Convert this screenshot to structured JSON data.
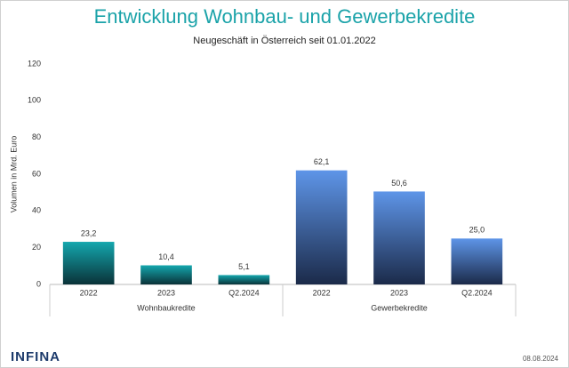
{
  "chart_data": {
    "type": "bar",
    "title": "Entwicklung Wohnbau- und Gewerbekredite",
    "subtitle": "Neugeschäft in Österreich seit 01.01.2022",
    "y_label": "Volumen in Mrd. Euro",
    "ylim": [
      0,
      120
    ],
    "yticks": [
      0,
      20,
      40,
      60,
      80,
      100,
      120
    ],
    "grid": false,
    "groups": [
      {
        "name": "Wohnbaukredite",
        "categories": [
          "2022",
          "2023",
          "Q2.2024"
        ],
        "values": [
          23.2,
          10.4,
          5.1
        ],
        "value_labels": [
          "23,2",
          "10,4",
          "5,1"
        ],
        "color": [
          "#14a7ae",
          "#0a3238"
        ]
      },
      {
        "name": "Gewerbekredite",
        "categories": [
          "2022",
          "2023",
          "Q2.2024"
        ],
        "values": [
          62.1,
          50.6,
          25.0
        ],
        "value_labels": [
          "62,1",
          "50,6",
          "25,0"
        ],
        "color": [
          "#5e95e8",
          "#1b2a49"
        ]
      }
    ]
  },
  "footer": {
    "logo": "INFINA",
    "date": "08.08.2024"
  }
}
